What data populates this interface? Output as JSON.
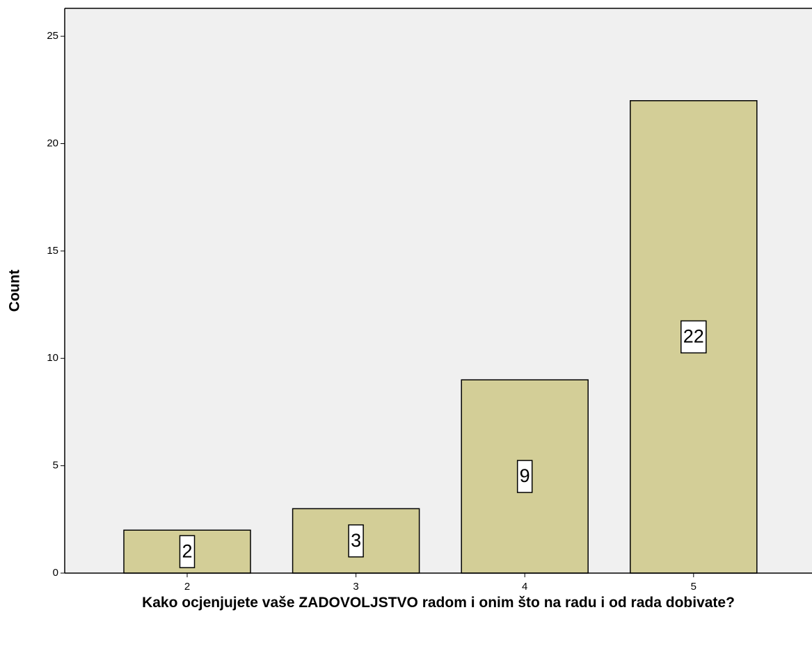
{
  "chart_data": {
    "type": "bar",
    "x_label": "Kako ocjenjujete vaše ZADOVOLJSTVO radom i onim što na radu i od rada dobivate?",
    "y_label": "Count",
    "categories": [
      "2",
      "3",
      "4",
      "5"
    ],
    "values": [
      2,
      3,
      9,
      22
    ],
    "color": "#d3ce97",
    "ylim": [
      0,
      26.3
    ],
    "yticks": [
      0,
      5,
      10,
      15,
      20,
      25
    ],
    "data_labels": true
  }
}
